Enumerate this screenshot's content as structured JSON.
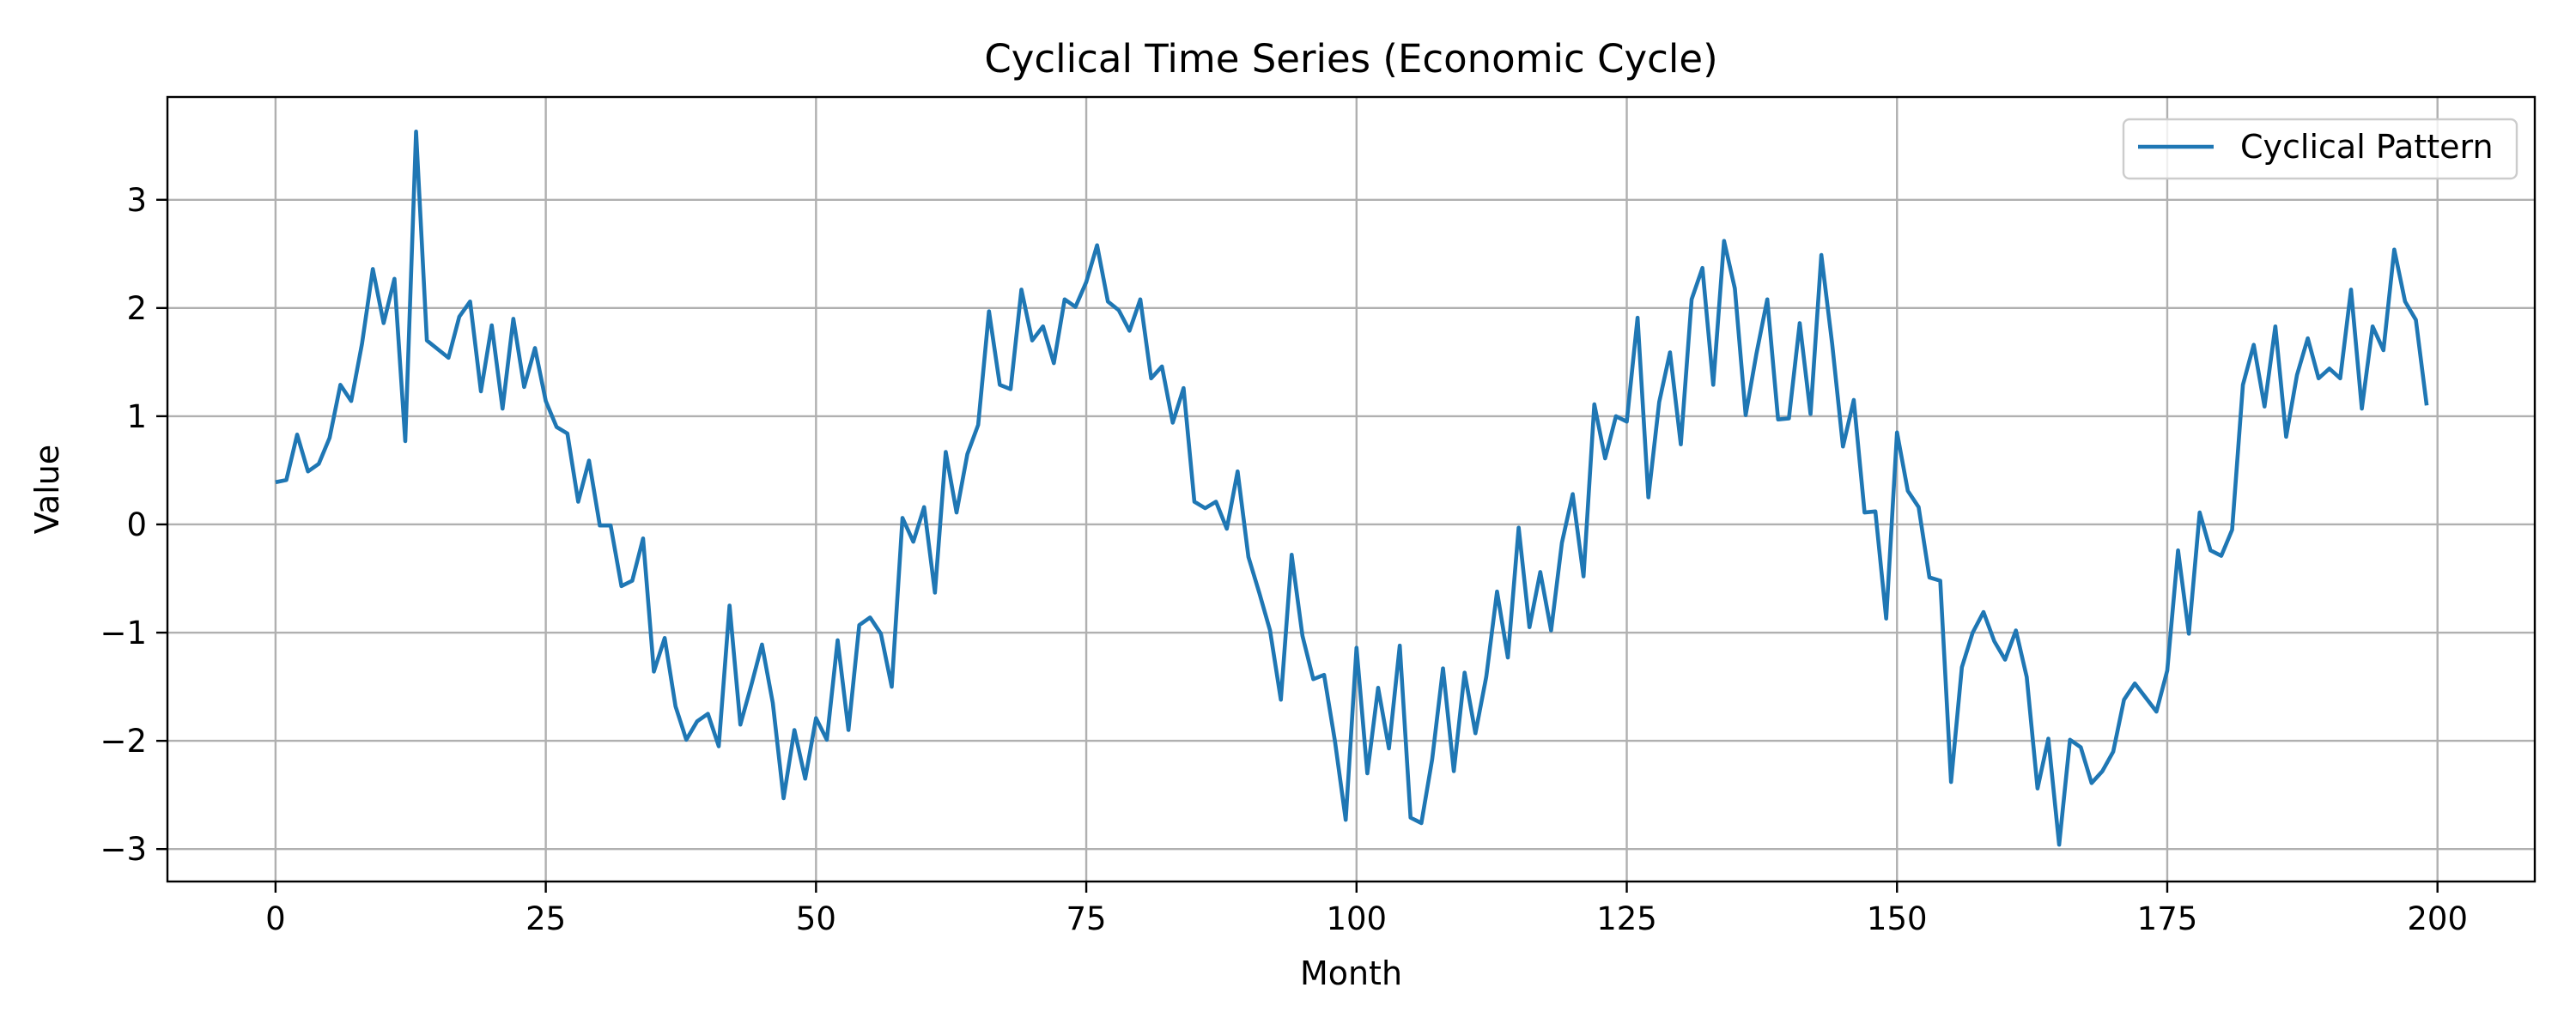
{
  "chart_data": {
    "type": "line",
    "title": "Cyclical Time Series (Economic Cycle)",
    "xlabel": "Month",
    "ylabel": "Value",
    "xlim": [
      -10,
      209
    ],
    "ylim": [
      -3.3,
      3.95
    ],
    "x_ticks": [
      0,
      25,
      50,
      75,
      100,
      125,
      150,
      175,
      200
    ],
    "y_ticks": [
      -3,
      -2,
      -1,
      0,
      1,
      2,
      3
    ],
    "grid": true,
    "legend_position": "top-right",
    "series": [
      {
        "name": "Cyclical Pattern",
        "color": "#1f77b4",
        "x_start": 0,
        "x_step": 1,
        "values": [
          0.39,
          0.41,
          0.83,
          0.49,
          0.56,
          0.8,
          1.29,
          1.14,
          1.67,
          2.36,
          1.86,
          2.27,
          0.77,
          3.63,
          1.7,
          1.62,
          1.54,
          1.92,
          2.06,
          1.23,
          1.84,
          1.07,
          1.9,
          1.27,
          1.63,
          1.14,
          0.9,
          0.84,
          0.21,
          0.59,
          -0.01,
          -0.01,
          -0.57,
          -0.52,
          -0.13,
          -1.36,
          -1.05,
          -1.68,
          -1.99,
          -1.82,
          -1.75,
          -2.05,
          -0.75,
          -1.85,
          -1.49,
          -1.11,
          -1.65,
          -2.53,
          -1.9,
          -2.35,
          -1.79,
          -1.99,
          -1.07,
          -1.9,
          -0.93,
          -0.86,
          -1.01,
          -1.5,
          0.06,
          -0.16,
          0.16,
          -0.63,
          0.67,
          0.11,
          0.65,
          0.92,
          1.97,
          1.29,
          1.25,
          2.17,
          1.7,
          1.83,
          1.49,
          2.08,
          2.01,
          2.24,
          2.58,
          2.06,
          1.98,
          1.79,
          2.08,
          1.35,
          1.46,
          0.94,
          1.26,
          0.21,
          0.15,
          0.21,
          -0.04,
          0.49,
          -0.3,
          -0.63,
          -0.98,
          -1.62,
          -0.28,
          -1.03,
          -1.43,
          -1.39,
          -2.0,
          -2.73,
          -1.14,
          -2.3,
          -1.51,
          -2.07,
          -1.12,
          -2.71,
          -2.76,
          -2.17,
          -1.33,
          -2.28,
          -1.37,
          -1.93,
          -1.41,
          -0.62,
          -1.23,
          -0.03,
          -0.95,
          -0.44,
          -0.98,
          -0.17,
          0.28,
          -0.48,
          1.11,
          0.61,
          1.0,
          0.95,
          1.91,
          0.25,
          1.13,
          1.59,
          0.74,
          2.08,
          2.37,
          1.29,
          2.62,
          2.18,
          1.01,
          1.58,
          2.08,
          0.97,
          0.98,
          1.86,
          1.02,
          2.49,
          1.67,
          0.72,
          1.15,
          0.11,
          0.12,
          -0.87,
          0.85,
          0.31,
          0.16,
          -0.49,
          -0.52,
          -2.38,
          -1.32,
          -1.0,
          -0.81,
          -1.08,
          -1.25,
          -0.98,
          -1.41,
          -2.44,
          -1.98,
          -2.96,
          -1.99,
          -2.06,
          -2.39,
          -2.28,
          -2.1,
          -1.62,
          -1.47,
          -1.6,
          -1.73,
          -1.35,
          -0.24,
          -1.01,
          0.11,
          -0.24,
          -0.29,
          -0.05,
          1.29,
          1.66,
          1.09,
          1.83,
          0.81,
          1.38,
          1.72,
          1.35,
          1.44,
          1.35,
          2.17,
          1.07,
          1.83,
          1.61,
          2.54,
          2.06,
          1.89,
          1.1
        ]
      }
    ]
  }
}
